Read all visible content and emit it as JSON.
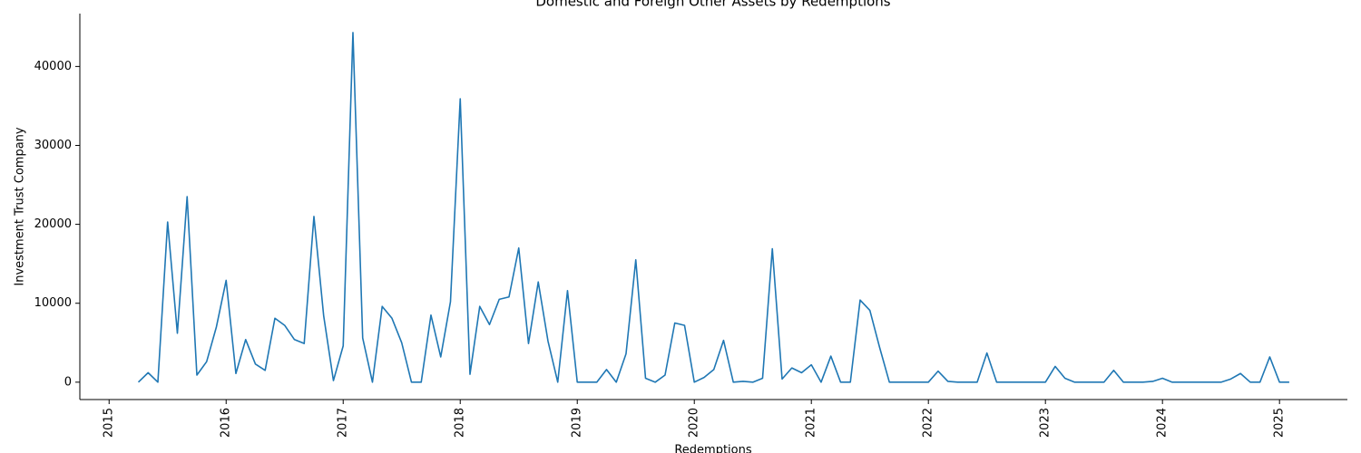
{
  "chart_data": {
    "type": "line",
    "title": "Domestic and Foreign Other Assets by Redemptions",
    "xlabel": "Redemptions",
    "ylabel": "Investment Trust Company",
    "x": [
      "2015-04",
      "2015-05",
      "2015-06",
      "2015-07",
      "2015-08",
      "2015-09",
      "2015-10",
      "2015-11",
      "2015-12",
      "2016-01",
      "2016-02",
      "2016-03",
      "2016-04",
      "2016-05",
      "2016-06",
      "2016-07",
      "2016-08",
      "2016-09",
      "2016-10",
      "2016-11",
      "2016-12",
      "2017-01",
      "2017-02",
      "2017-03",
      "2017-04",
      "2017-05",
      "2017-06",
      "2017-07",
      "2017-08",
      "2017-09",
      "2017-10",
      "2017-11",
      "2017-12",
      "2018-01",
      "2018-02",
      "2018-03",
      "2018-04",
      "2018-05",
      "2018-06",
      "2018-07",
      "2018-08",
      "2018-09",
      "2018-10",
      "2018-11",
      "2018-12",
      "2019-01",
      "2019-02",
      "2019-03",
      "2019-04",
      "2019-05",
      "2019-06",
      "2019-07",
      "2019-08",
      "2019-09",
      "2019-10",
      "2019-11",
      "2019-12",
      "2020-01",
      "2020-02",
      "2020-03",
      "2020-04",
      "2020-05",
      "2020-06",
      "2020-07",
      "2020-08",
      "2020-09",
      "2020-10",
      "2020-11",
      "2020-12",
      "2021-01",
      "2021-02",
      "2021-03",
      "2021-04",
      "2021-05",
      "2021-06",
      "2021-07",
      "2021-08",
      "2021-09",
      "2021-10",
      "2021-11",
      "2021-12",
      "2022-01",
      "2022-02",
      "2022-03",
      "2022-04",
      "2022-05",
      "2022-06",
      "2022-07",
      "2022-08",
      "2022-09",
      "2022-10",
      "2022-11",
      "2022-12",
      "2023-01",
      "2023-02",
      "2023-03",
      "2023-04",
      "2023-05",
      "2023-06",
      "2023-07",
      "2023-08",
      "2023-09",
      "2023-10",
      "2023-11",
      "2023-12",
      "2024-01",
      "2024-02",
      "2024-03",
      "2024-04",
      "2024-05",
      "2024-06",
      "2024-07",
      "2024-08",
      "2024-09",
      "2024-10",
      "2024-11",
      "2024-12",
      "2025-01",
      "2025-02"
    ],
    "series": [
      {
        "name": "Investment Trust Company",
        "color": "#1f77b4",
        "values": [
          0,
          1200,
          0,
          20300,
          6200,
          23500,
          900,
          2600,
          7000,
          12900,
          1100,
          5400,
          2300,
          1500,
          8100,
          7200,
          5400,
          4900,
          21000,
          8400,
          200,
          4600,
          44300,
          5600,
          0,
          9600,
          8100,
          5000,
          0,
          0,
          8500,
          3200,
          10200,
          35900,
          1000,
          9600,
          7300,
          10500,
          10800,
          17000,
          4900,
          12700,
          5200,
          0,
          11600,
          0,
          0,
          0,
          1600,
          0,
          3600,
          15500,
          500,
          0,
          900,
          7500,
          7200,
          0,
          600,
          1600,
          5300,
          0,
          100,
          0,
          500,
          16900,
          400,
          1800,
          1200,
          2200,
          0,
          3300,
          0,
          0,
          10400,
          9100,
          4400,
          0,
          0,
          0,
          0,
          0,
          1400,
          100,
          0,
          0,
          0,
          3700,
          0,
          0,
          0,
          0,
          0,
          0,
          2000,
          500,
          0,
          0,
          0,
          0,
          1500,
          0,
          0,
          0,
          100,
          500,
          0,
          0,
          0,
          0,
          0,
          0,
          400,
          1100,
          0,
          0,
          3200,
          0,
          0
        ]
      }
    ],
    "xlim": [
      2014.75,
      2025.58
    ],
    "xticks": [
      2015,
      2016,
      2017,
      2018,
      2019,
      2020,
      2021,
      2022,
      2023,
      2024,
      2025
    ],
    "ylim": [
      -2200,
      46700
    ],
    "yticks": [
      0,
      10000,
      20000,
      30000,
      40000
    ],
    "grid": false
  }
}
